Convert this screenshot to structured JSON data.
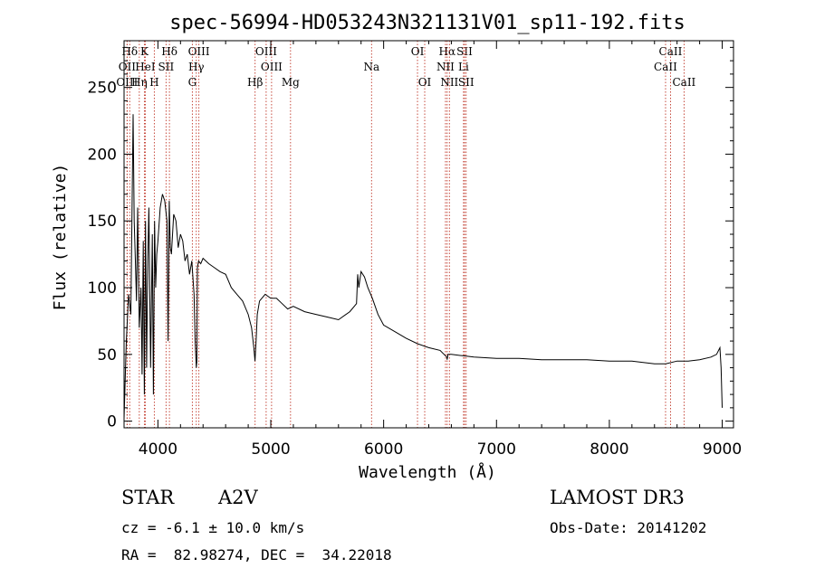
{
  "chart_data": {
    "type": "line",
    "title": "spec-56994-HD053243N321131V01_sp11-192.fits",
    "xlabel": "Wavelength (Å)",
    "ylabel": "Flux (relative)",
    "xlim": [
      3700,
      9100
    ],
    "ylim": [
      -5,
      285
    ],
    "xticks": [
      4000,
      5000,
      6000,
      7000,
      8000,
      9000
    ],
    "yticks": [
      0,
      50,
      100,
      150,
      200,
      250
    ],
    "grid": false,
    "series": [
      {
        "name": "flux",
        "x": [
          3700,
          3720,
          3740,
          3760,
          3780,
          3790,
          3800,
          3810,
          3820,
          3835,
          3850,
          3860,
          3870,
          3880,
          3890,
          3900,
          3910,
          3920,
          3935,
          3950,
          3960,
          3970,
          3980,
          3990,
          4000,
          4020,
          4040,
          4060,
          4080,
          4090,
          4100,
          4110,
          4120,
          4140,
          4160,
          4180,
          4200,
          4220,
          4240,
          4260,
          4280,
          4300,
          4320,
          4330,
          4340,
          4345,
          4350,
          4360,
          4380,
          4400,
          4450,
          4500,
          4550,
          4600,
          4650,
          4700,
          4750,
          4800,
          4830,
          4850,
          4860,
          4870,
          4880,
          4900,
          4950,
          5000,
          5050,
          5100,
          5150,
          5200,
          5300,
          5400,
          5500,
          5600,
          5700,
          5760,
          5770,
          5780,
          5800,
          5830,
          5860,
          5900,
          5950,
          6000,
          6100,
          6200,
          6300,
          6400,
          6500,
          6560,
          6563,
          6570,
          6600,
          6700,
          6800,
          7000,
          7200,
          7400,
          7600,
          7800,
          8000,
          8200,
          8400,
          8500,
          8600,
          8700,
          8800,
          8900,
          8950,
          8980,
          8990,
          9000
        ],
        "values": [
          2,
          60,
          95,
          80,
          230,
          150,
          120,
          90,
          160,
          70,
          100,
          35,
          135,
          20,
          150,
          40,
          120,
          160,
          40,
          140,
          20,
          150,
          100,
          125,
          135,
          160,
          170,
          165,
          150,
          60,
          165,
          130,
          125,
          155,
          150,
          130,
          140,
          135,
          120,
          125,
          110,
          120,
          95,
          60,
          40,
          45,
          115,
          120,
          118,
          122,
          118,
          115,
          112,
          110,
          100,
          95,
          90,
          80,
          70,
          55,
          45,
          60,
          80,
          90,
          95,
          92,
          92,
          88,
          84,
          86,
          82,
          80,
          78,
          76,
          82,
          88,
          110,
          100,
          112,
          108,
          100,
          92,
          80,
          72,
          67,
          62,
          58,
          55,
          53,
          48,
          46,
          50,
          50,
          49,
          48,
          47,
          47,
          46,
          46,
          46,
          45,
          45,
          43,
          43,
          45,
          45,
          46,
          48,
          50,
          55,
          40,
          10
        ]
      }
    ],
    "lines": [
      {
        "label": "Hδ",
        "x": 3750,
        "row": 1
      },
      {
        "label": "OII",
        "x": 3727,
        "row": 2
      },
      {
        "label": "OIII",
        "x": 3727,
        "row": 3
      },
      {
        "label": "K",
        "x": 3880,
        "row": 1
      },
      {
        "label": "HeI",
        "x": 3888,
        "row": 2
      },
      {
        "label": "Hη",
        "x": 3835,
        "row": 3
      },
      {
        "label": "H",
        "x": 3968,
        "row": 3
      },
      {
        "label": "SII",
        "x": 4072,
        "row": 2
      },
      {
        "label": "Hδ",
        "x": 4102,
        "row": 1
      },
      {
        "label": "OIII",
        "x": 4363,
        "row": 1
      },
      {
        "label": "Hγ",
        "x": 4340,
        "row": 2
      },
      {
        "label": "G",
        "x": 4305,
        "row": 3
      },
      {
        "label": "OIII",
        "x": 4959,
        "row": 1
      },
      {
        "label": "OIII",
        "x": 5007,
        "row": 2
      },
      {
        "label": "Hβ",
        "x": 4861,
        "row": 3
      },
      {
        "label": "Mg",
        "x": 5175,
        "row": 3
      },
      {
        "label": "Na",
        "x": 5893,
        "row": 2
      },
      {
        "label": "OI",
        "x": 6300,
        "row": 1
      },
      {
        "label": "OI",
        "x": 6364,
        "row": 3
      },
      {
        "label": "Hα",
        "x": 6563,
        "row": 1
      },
      {
        "label": "NII",
        "x": 6548,
        "row": 2
      },
      {
        "label": "NII",
        "x": 6583,
        "row": 3
      },
      {
        "label": "SII",
        "x": 6717,
        "row": 1
      },
      {
        "label": "Li",
        "x": 6708,
        "row": 2
      },
      {
        "label": "SII",
        "x": 6731,
        "row": 3
      },
      {
        "label": "CaII",
        "x": 8542,
        "row": 1
      },
      {
        "label": "CaII",
        "x": 8498,
        "row": 2
      },
      {
        "label": "CaII",
        "x": 8662,
        "row": 3
      }
    ]
  },
  "info": {
    "class_label": "STAR",
    "subclass": "A2V",
    "survey": "LAMOST DR3",
    "cz": "cz = -6.1 ± 10.0 km/s",
    "obs_date": "Obs-Date: 20141202",
    "coords": "RA =  82.98274, DEC =  34.22018"
  }
}
